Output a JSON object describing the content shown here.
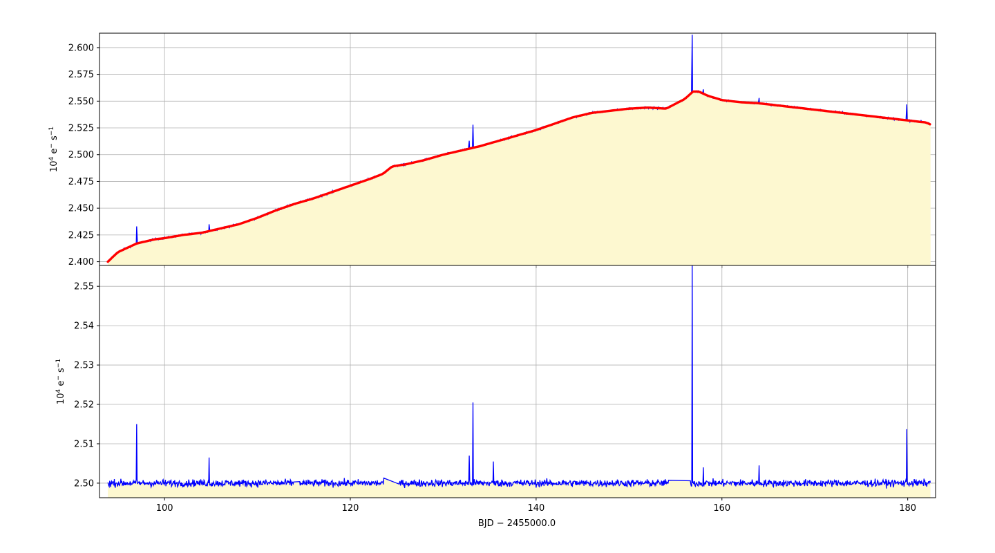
{
  "chart_data": [
    {
      "type": "line",
      "panel": "top",
      "xlabel": "",
      "ylabel_base": "10",
      "ylabel_exp": "4",
      "ylabel_unit": " e",
      "ylabel_unit_sup": "−",
      "ylabel_tail": " s",
      "ylabel_tail_sup": "−1",
      "xlim": [
        93.0,
        183.0
      ],
      "ylim": [
        2.3965,
        2.6135
      ],
      "xticks": [
        100,
        120,
        140,
        160,
        180
      ],
      "yticks": [
        2.4,
        2.425,
        2.45,
        2.475,
        2.5,
        2.525,
        2.55,
        2.575,
        2.6
      ],
      "ytick_labels": [
        "2.400",
        "2.425",
        "2.450",
        "2.475",
        "2.500",
        "2.525",
        "2.550",
        "2.575",
        "2.600"
      ],
      "grid": true,
      "fill_color": "#fdf8d0",
      "series": [
        {
          "color": "#0000ff",
          "role": "flux",
          "x": [
            93.9,
            94.5,
            95.0,
            96.0,
            97.0,
            98.0,
            99.0,
            100.0,
            102.0,
            104.0,
            106.0,
            108.0,
            110.0,
            112.0,
            114.0,
            116.0,
            118.0,
            120.0,
            122.0,
            123.5,
            124.5,
            126.0,
            128.0,
            130.0,
            132.0,
            134.0,
            136.0,
            138.0,
            140.0,
            142.0,
            144.0,
            146.0,
            148.0,
            150.0,
            152.0,
            154.0,
            156.0,
            156.9,
            157.5,
            158.5,
            160.0,
            162.0,
            164.0,
            166.0,
            168.0,
            170.0,
            172.0,
            174.0,
            176.0,
            178.0,
            180.0,
            182.0,
            182.5
          ],
          "y": [
            2.4,
            2.405,
            2.409,
            2.413,
            2.417,
            2.419,
            2.421,
            2.422,
            2.425,
            2.427,
            2.431,
            2.435,
            2.441,
            2.448,
            2.454,
            2.459,
            2.465,
            2.471,
            2.477,
            2.482,
            2.489,
            2.491,
            2.495,
            2.5,
            2.504,
            2.508,
            2.513,
            2.518,
            2.523,
            2.529,
            2.535,
            2.539,
            2.541,
            2.543,
            2.544,
            2.543,
            2.552,
            2.559,
            2.559,
            2.555,
            2.551,
            2.549,
            2.548,
            2.546,
            2.544,
            2.542,
            2.54,
            2.538,
            2.536,
            2.534,
            2.532,
            2.53,
            2.528
          ],
          "spikes": [
            [
              97.0,
              2.433
            ],
            [
              104.8,
              2.435
            ],
            [
              133.2,
              2.528
            ],
            [
              132.8,
              2.513
            ],
            [
              156.8,
              2.612
            ],
            [
              158.0,
              2.561
            ],
            [
              164.0,
              2.553
            ],
            [
              179.9,
              2.547
            ]
          ]
        },
        {
          "color": "#ff0000",
          "role": "trend",
          "x": [
            93.9,
            94.5,
            95.0,
            96.0,
            97.0,
            98.0,
            99.0,
            100.0,
            102.0,
            104.0,
            106.0,
            108.0,
            110.0,
            112.0,
            114.0,
            116.0,
            118.0,
            120.0,
            122.0,
            123.5,
            124.5,
            126.0,
            128.0,
            130.0,
            132.0,
            134.0,
            136.0,
            138.0,
            140.0,
            142.0,
            144.0,
            146.0,
            148.0,
            150.0,
            152.0,
            154.0,
            156.0,
            156.9,
            157.5,
            158.5,
            160.0,
            162.0,
            164.0,
            166.0,
            168.0,
            170.0,
            172.0,
            174.0,
            176.0,
            178.0,
            180.0,
            182.0,
            182.5
          ],
          "y": [
            2.4,
            2.405,
            2.409,
            2.413,
            2.417,
            2.419,
            2.421,
            2.422,
            2.425,
            2.427,
            2.431,
            2.435,
            2.441,
            2.448,
            2.454,
            2.459,
            2.465,
            2.471,
            2.477,
            2.482,
            2.489,
            2.491,
            2.495,
            2.5,
            2.504,
            2.508,
            2.513,
            2.518,
            2.523,
            2.529,
            2.535,
            2.539,
            2.541,
            2.543,
            2.544,
            2.543,
            2.552,
            2.559,
            2.559,
            2.555,
            2.551,
            2.549,
            2.548,
            2.546,
            2.544,
            2.542,
            2.54,
            2.538,
            2.536,
            2.534,
            2.532,
            2.53,
            2.528
          ]
        }
      ]
    },
    {
      "type": "line",
      "panel": "bottom",
      "xlabel": "BJD − 2455000.0",
      "ylabel_base": "10",
      "ylabel_exp": "4",
      "ylabel_unit": " e",
      "ylabel_unit_sup": "−",
      "ylabel_tail": " s",
      "ylabel_tail_sup": "−1",
      "xlim": [
        93.0,
        183.0
      ],
      "ylim": [
        2.4963,
        2.5553
      ],
      "xticks": [
        100,
        120,
        140,
        160,
        180
      ],
      "yticks": [
        2.5,
        2.51,
        2.52,
        2.53,
        2.54,
        2.55
      ],
      "ytick_labels": [
        "2.50",
        "2.51",
        "2.52",
        "2.53",
        "2.54",
        "2.55"
      ],
      "grid": true,
      "fill_color": "#fdf8d0",
      "series": [
        {
          "color": "#0000ff",
          "role": "detrended flux",
          "baseline": 2.5,
          "noise": 0.0009,
          "x_start": 93.9,
          "x_end": 182.5,
          "gaps": [
            [
              113.9,
              114.5
            ],
            [
              123.6,
              125.2
            ],
            [
              154.3,
              156.6
            ]
          ],
          "spikes": [
            [
              97.0,
              2.515
            ],
            [
              104.8,
              2.5065
            ],
            [
              132.8,
              2.507
            ],
            [
              133.2,
              2.5205
            ],
            [
              135.4,
              2.5055
            ],
            [
              156.8,
              2.5555
            ],
            [
              158.0,
              2.504
            ],
            [
              164.0,
              2.5045
            ],
            [
              179.9,
              2.5137
            ]
          ]
        }
      ]
    }
  ]
}
